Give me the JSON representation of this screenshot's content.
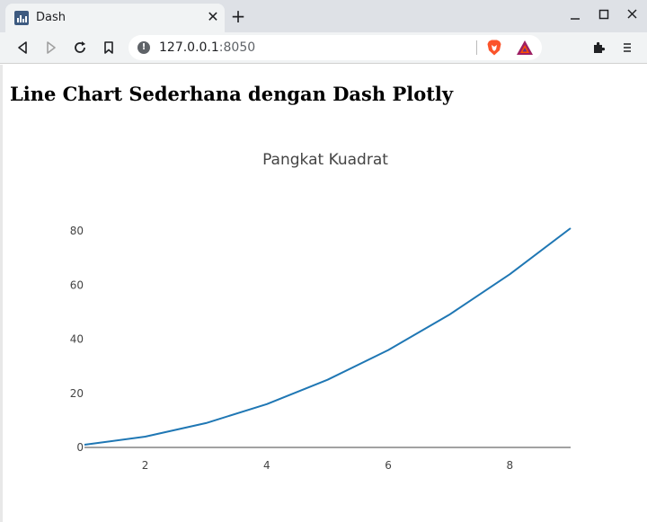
{
  "browser": {
    "tab_title": "Dash",
    "new_tab_label": "+",
    "close_tab_label": "✕",
    "url_host": "127.0.0.1",
    "url_port": ":8050",
    "window": {
      "minimize": "–",
      "maximize": "□",
      "close": "✕"
    }
  },
  "page": {
    "heading": "Line Chart Sederhana dengan Dash Plotly"
  },
  "chart_data": {
    "type": "line",
    "title": "Pangkat Kuadrat",
    "xlabel": "",
    "ylabel": "",
    "x": [
      1,
      2,
      3,
      4,
      5,
      6,
      7,
      8,
      9
    ],
    "series": [
      {
        "values": [
          1,
          4,
          9,
          16,
          25,
          36,
          49,
          64,
          81
        ],
        "color": "#1f77b4"
      }
    ],
    "xlim": [
      1,
      9
    ],
    "ylim": [
      0,
      81
    ],
    "x_ticks": [
      2,
      4,
      6,
      8
    ],
    "y_ticks": [
      0,
      20,
      40,
      60,
      80
    ],
    "grid": false
  },
  "colors": {
    "line": "#1f77b4",
    "axis": "#444444",
    "tick_text": "#444444"
  }
}
